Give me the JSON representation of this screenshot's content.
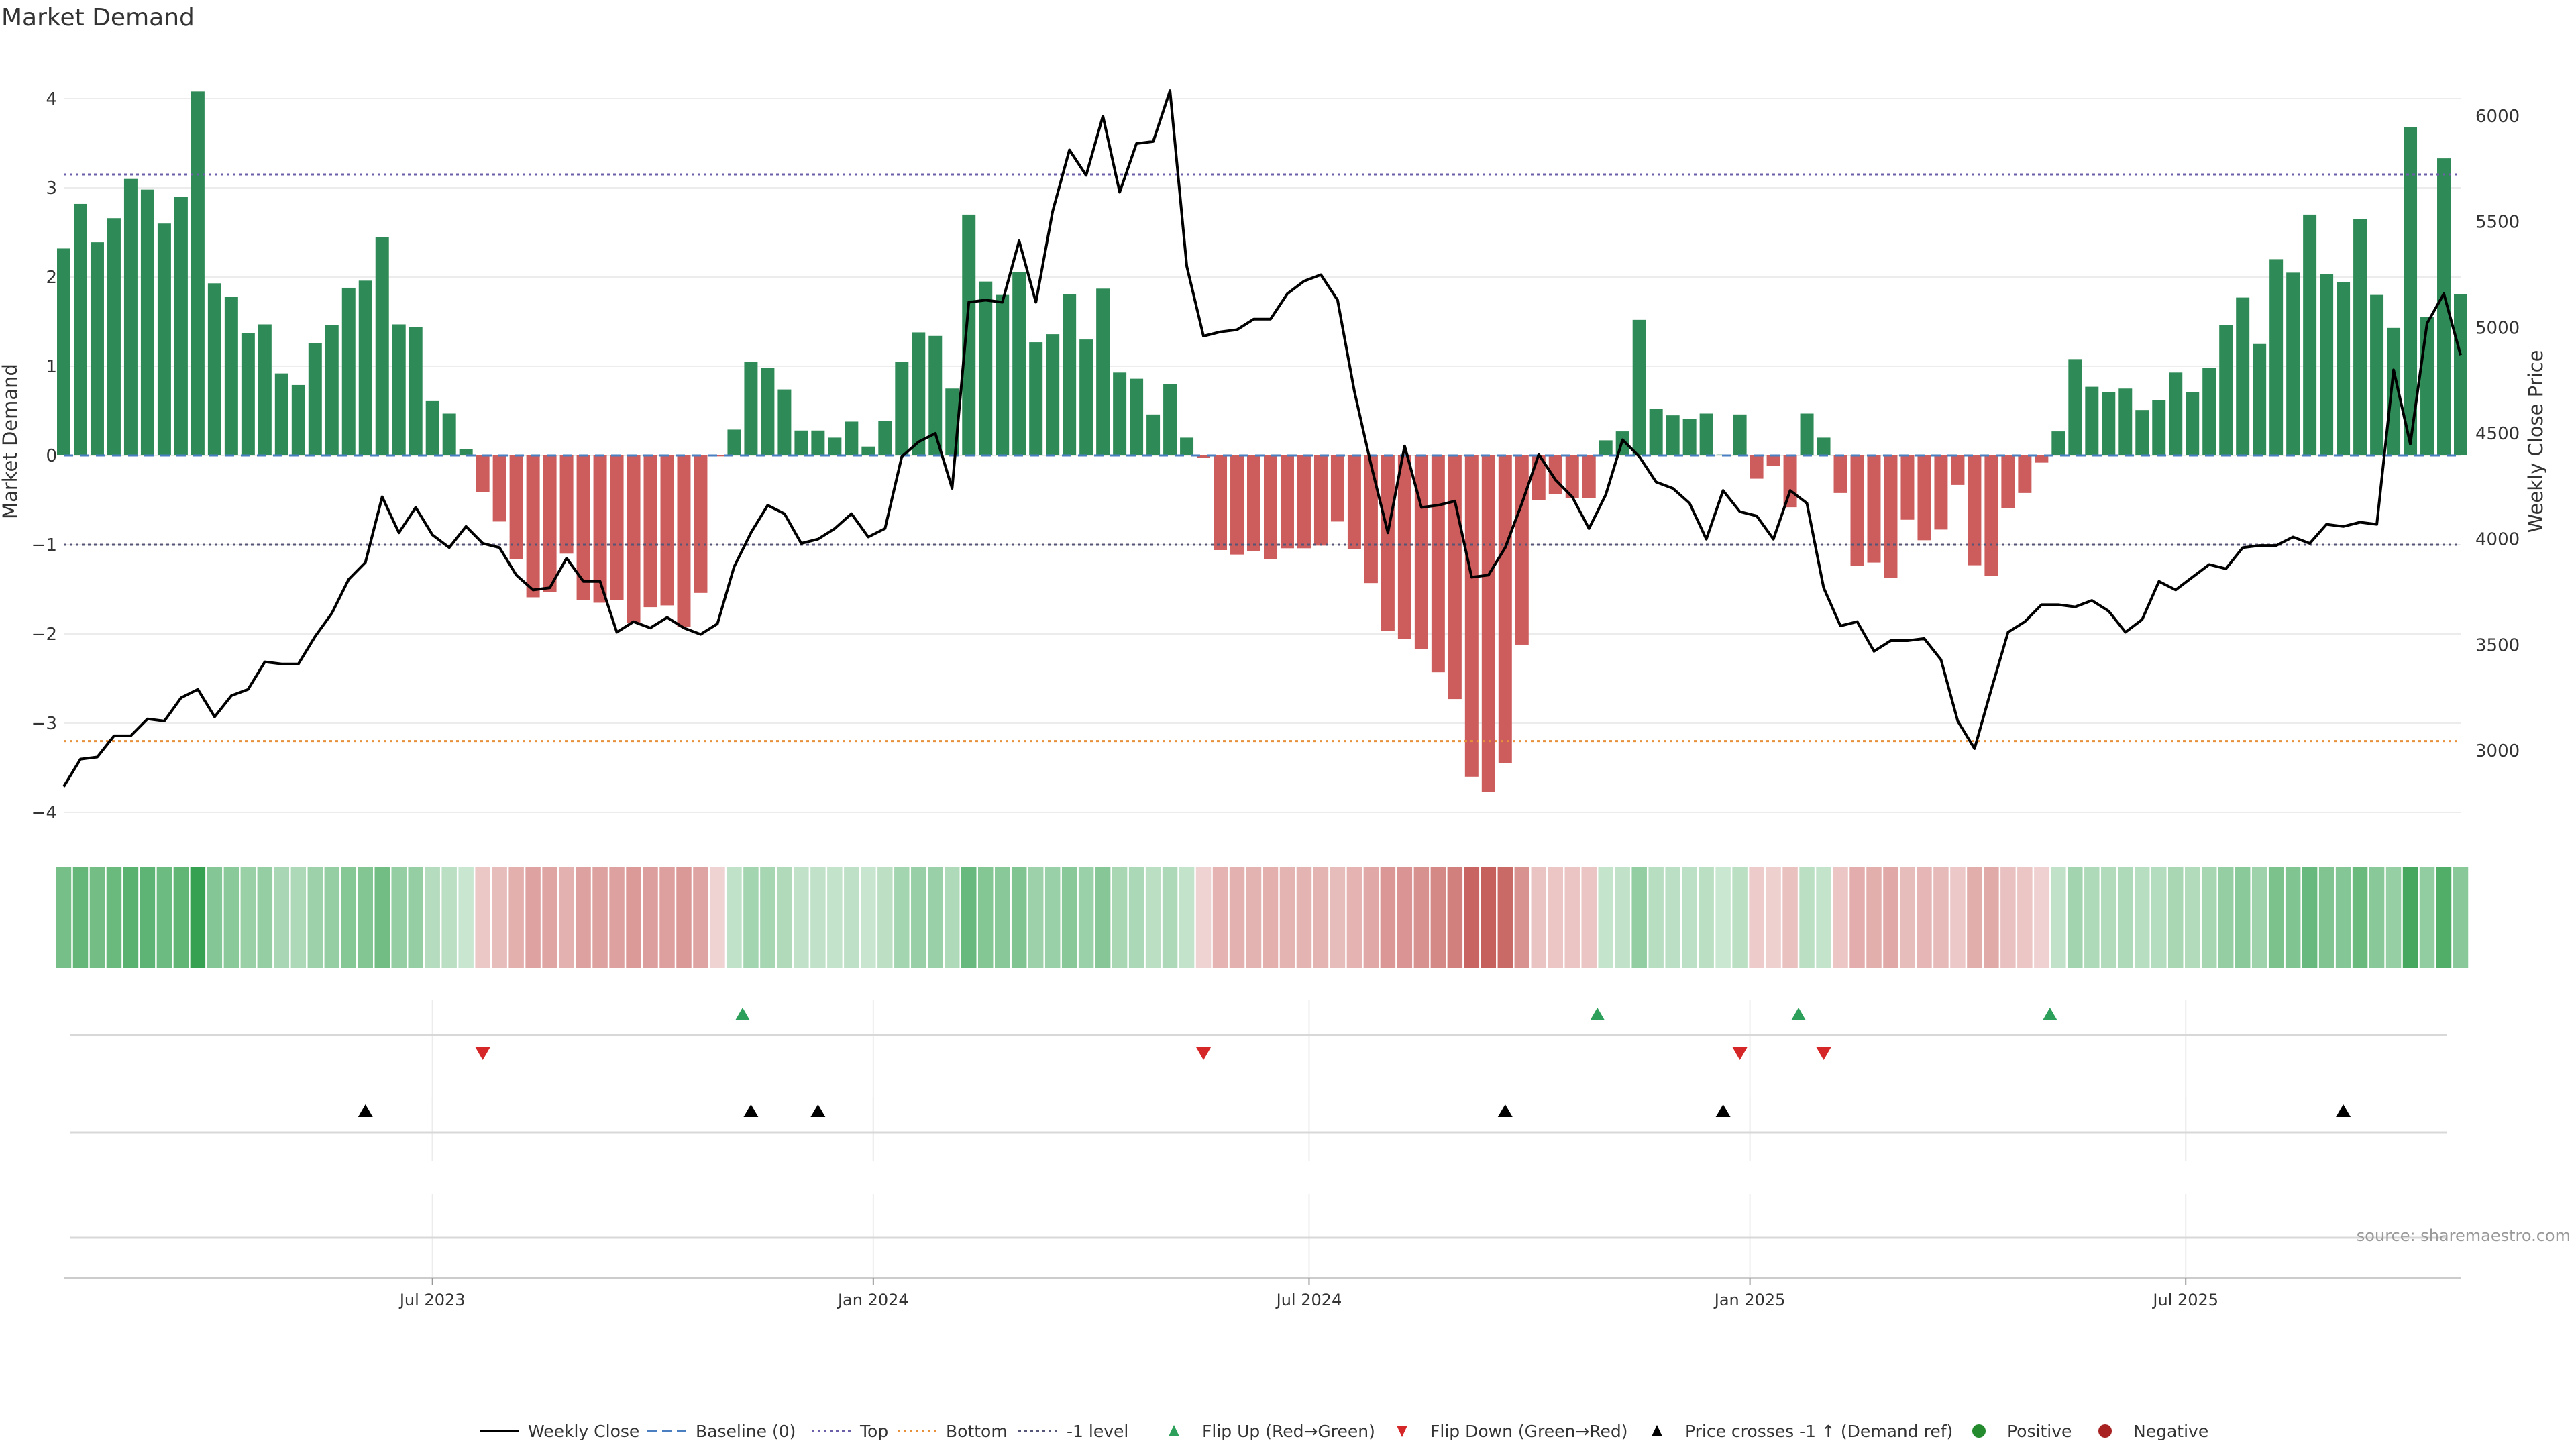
{
  "chart_data": {
    "type": "bar+line",
    "title": "Market Demand",
    "ylabel_left": "Market Demand",
    "ylabel_right": "Weekly Close Price",
    "ylim_left": [
      -4.3,
      4.35
    ],
    "ylim_right": [
      2750,
      6270
    ],
    "yticks_left": [
      "4",
      "3",
      "2",
      "1",
      "0",
      "−1",
      "−2",
      "−3",
      "−4"
    ],
    "yticks_left_values": [
      4,
      3,
      2,
      1,
      0,
      -1,
      -2,
      -3,
      -4
    ],
    "yticks_right": [
      "6000",
      "5500",
      "5000",
      "4500",
      "4000",
      "3500",
      "3000"
    ],
    "yticks_right_values": [
      6000,
      5500,
      5000,
      4500,
      4000,
      3500,
      3000
    ],
    "xticks": [
      "Jul 2023",
      "Jan 2024",
      "Jul 2024",
      "Jan 2025",
      "Jul 2025"
    ],
    "xtick_weeks": [
      22,
      48.3,
      74.3,
      100.6,
      126.6
    ],
    "reference_lines": {
      "top": 3.15,
      "bottom": -3.2,
      "minus_one": -1.0,
      "baseline": 0
    },
    "demand": [
      2.32,
      2.82,
      2.39,
      2.66,
      3.1,
      2.98,
      2.6,
      2.9,
      4.08,
      1.93,
      1.78,
      1.37,
      1.47,
      0.92,
      0.79,
      1.26,
      1.46,
      1.88,
      1.96,
      2.45,
      1.47,
      1.44,
      0.61,
      0.47,
      0.07,
      -0.41,
      -0.74,
      -1.16,
      -1.59,
      -1.53,
      -1.1,
      -1.62,
      -1.65,
      -1.62,
      -1.88,
      -1.7,
      -1.68,
      -1.92,
      -1.54,
      -0.01,
      0.29,
      1.05,
      0.98,
      0.74,
      0.28,
      0.28,
      0.2,
      0.38,
      0.1,
      0.39,
      1.05,
      1.38,
      1.34,
      0.75,
      2.7,
      1.95,
      1.8,
      2.06,
      1.27,
      1.36,
      1.81,
      1.3,
      1.87,
      0.93,
      0.86,
      0.46,
      0.8,
      0.2,
      -0.03,
      -1.06,
      -1.11,
      -1.07,
      -1.16,
      -1.04,
      -1.04,
      -1.01,
      -0.74,
      -1.05,
      -1.43,
      -1.97,
      -2.06,
      -2.17,
      -2.43,
      -2.73,
      -3.6,
      -3.77,
      -3.45,
      -2.12,
      -0.5,
      -0.43,
      -0.48,
      -0.48,
      0.17,
      0.27,
      1.52,
      0.52,
      0.45,
      0.41,
      0.47,
      0.01,
      0.46,
      -0.26,
      -0.12,
      -0.58,
      0.47,
      0.2,
      -0.42,
      -1.24,
      -1.2,
      -1.37,
      -0.72,
      -0.95,
      -0.83,
      -0.33,
      -1.23,
      -1.35,
      -0.59,
      -0.42,
      -0.08,
      0.27,
      1.08,
      0.77,
      0.71,
      0.75,
      0.51,
      0.62,
      0.93,
      0.71,
      0.98,
      1.46,
      1.77,
      1.25,
      2.2,
      2.05,
      2.7,
      2.03,
      1.94,
      2.65,
      1.8,
      1.43,
      3.68,
      1.55,
      3.33,
      1.81
    ],
    "weekly_close": [
      2830,
      2960,
      2970,
      3070,
      3070,
      3150,
      3140,
      3250,
      3290,
      3160,
      3260,
      3290,
      3420,
      3410,
      3410,
      3540,
      3650,
      3810,
      3890,
      4200,
      4030,
      4150,
      4020,
      3960,
      4060,
      3980,
      3960,
      3830,
      3760,
      3770,
      3910,
      3800,
      3800,
      3560,
      3610,
      3580,
      3630,
      3580,
      3550,
      3600,
      3870,
      4030,
      4160,
      4120,
      3980,
      4000,
      4050,
      4120,
      4010,
      4050,
      4390,
      4460,
      4500,
      4240,
      5120,
      5130,
      5120,
      5410,
      5120,
      5550,
      5840,
      5720,
      6000,
      5640,
      5870,
      5880,
      6120,
      5290,
      4960,
      4980,
      4990,
      5040,
      5040,
      5160,
      5220,
      5250,
      5130,
      4700,
      4350,
      4030,
      4440,
      4150,
      4160,
      4180,
      3820,
      3830,
      3960,
      4170,
      4400,
      4280,
      4200,
      4050,
      4210,
      4470,
      4390,
      4270,
      4240,
      4170,
      4000,
      4230,
      4130,
      4110,
      4000,
      4230,
      4170,
      3770,
      3590,
      3610,
      3470,
      3520,
      3520,
      3530,
      3430,
      3140,
      3010,
      3290,
      3560,
      3610,
      3690,
      3690,
      3680,
      3710,
      3660,
      3560,
      3620,
      3800,
      3760,
      3820,
      3880,
      3860,
      3960,
      3970,
      3970,
      4010,
      3980,
      4070,
      4060,
      4080,
      4070,
      4800,
      4450,
      5020,
      5160,
      4870
    ],
    "flip_up_weeks": [
      40.5,
      91.5,
      103.5,
      118.5
    ],
    "flip_down_weeks": [
      25,
      68,
      100,
      105
    ],
    "cross_weeks": [
      18,
      41,
      45,
      86,
      99,
      136
    ],
    "heatmap_caption": "",
    "legend": [
      {
        "label": "Weekly Close",
        "kind": "line-solid",
        "color": "#000000"
      },
      {
        "label": "Baseline (0)",
        "kind": "line-dash",
        "color": "#4a7fc1"
      },
      {
        "label": "Top",
        "kind": "line-dot",
        "color": "#6a5fa8"
      },
      {
        "label": "Bottom",
        "kind": "line-dot",
        "color": "#e8903a"
      },
      {
        "label": "-1 level",
        "kind": "line-dot",
        "color": "#555577"
      },
      {
        "label": "Flip Up (Red→Green)",
        "kind": "tri-up",
        "color": "#2ca05a"
      },
      {
        "label": "Flip Down (Green→Red)",
        "kind": "tri-down",
        "color": "#d62728"
      },
      {
        "label": "Price crosses -1 ↑ (Demand ref)",
        "kind": "tri-up",
        "color": "#000000"
      },
      {
        "label": "Positive",
        "kind": "dot",
        "color": "#238b2e"
      },
      {
        "label": "Negative",
        "kind": "dot",
        "color": "#a82222"
      }
    ],
    "source": "source: sharemaestro.com",
    "colors": {
      "positive_bar": "#2e8b57",
      "negative_bar": "#cd5c5c"
    }
  }
}
